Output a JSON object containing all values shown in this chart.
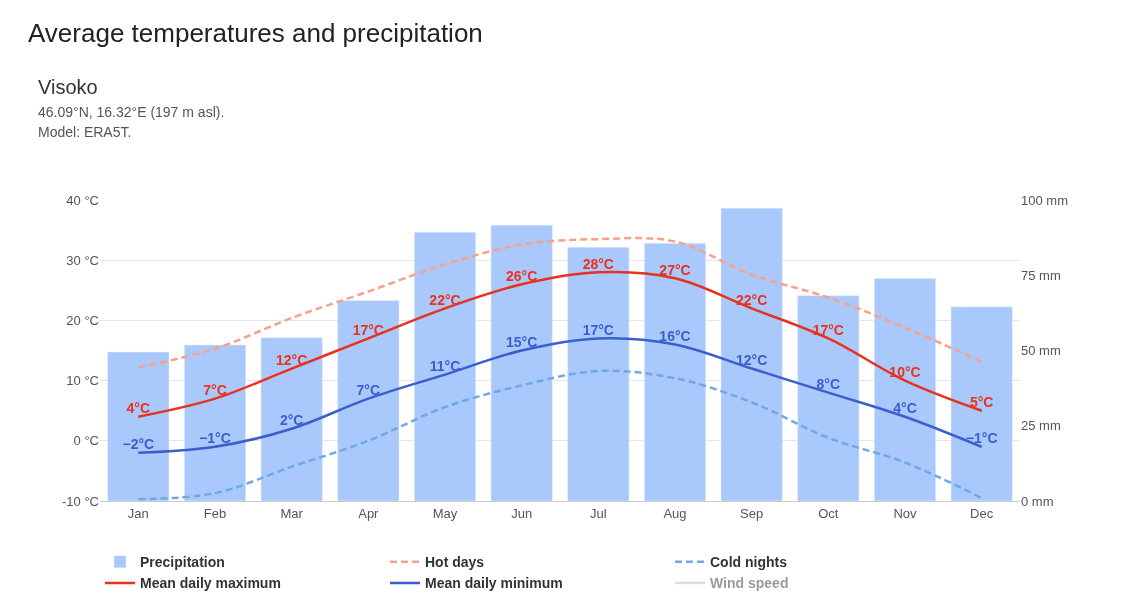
{
  "chart_data": {
    "type": "line",
    "title": "Average temperatures and precipitation",
    "subtitle": "Visoko",
    "annotations": [
      "46.09°N, 16.32°E (197 m asl).",
      "Model: ERA5T."
    ],
    "categories": [
      "Jan",
      "Feb",
      "Mar",
      "Apr",
      "May",
      "Jun",
      "Jul",
      "Aug",
      "Sep",
      "Oct",
      "Nov",
      "Dec"
    ],
    "series": [
      {
        "name": "Precipitation",
        "type": "bar",
        "axis": "y2",
        "color": "#a9c8fb",
        "values": [
          49.5,
          51.8,
          54.2,
          66.6,
          89.3,
          91.6,
          84.3,
          85.6,
          97.3,
          68.2,
          73.9,
          64.5
        ]
      },
      {
        "name": "Hot days",
        "color": "#f8a08c",
        "line_style": "dashed",
        "values": [
          12.2,
          15.3,
          20.4,
          24.8,
          29.3,
          32.6,
          33.5,
          33.1,
          27.6,
          23.8,
          18.8,
          13.1
        ]
      },
      {
        "name": "Cold nights",
        "color": "#6fa8e6",
        "line_style": "dashed",
        "values": [
          -9.7,
          -8.7,
          -4.3,
          0.0,
          5.6,
          9.2,
          11.6,
          10.4,
          6.4,
          0.5,
          -3.6,
          -9.5
        ]
      },
      {
        "name": "Mean daily maximum",
        "color": "#e8321e",
        "line_style": "solid",
        "values": [
          4,
          7,
          12,
          17,
          22,
          26,
          28,
          27,
          22,
          17,
          10,
          5
        ],
        "value_labels": [
          "4°C",
          "7°C",
          "12°C",
          "17°C",
          "22°C",
          "26°C",
          "28°C",
          "27°C",
          "22°C",
          "17°C",
          "10°C",
          "5°C"
        ]
      },
      {
        "name": "Mean daily minimum",
        "color": "#3a5fcd",
        "line_style": "solid",
        "values": [
          -2,
          -1,
          2,
          7,
          11,
          15,
          17,
          16,
          12,
          8,
          4,
          -1
        ],
        "value_labels": [
          "−2°C",
          "−1°C",
          "2°C",
          "7°C",
          "11°C",
          "15°C",
          "17°C",
          "16°C",
          "12°C",
          "8°C",
          "4°C",
          "−1°C"
        ]
      },
      {
        "name": "Wind speed",
        "color": "#bbbbbb",
        "line_style": "solid",
        "values": [
          null,
          null,
          null,
          null,
          null,
          null,
          null,
          null,
          null,
          null,
          null,
          null
        ]
      }
    ],
    "ylim": [
      -10,
      40
    ],
    "yticks": [
      {
        "value": -10,
        "label": "-10 °C"
      },
      {
        "value": 0,
        "label": "0 °C"
      },
      {
        "value": 10,
        "label": "10 °C"
      },
      {
        "value": 20,
        "label": "20 °C"
      },
      {
        "value": 30,
        "label": "30 °C"
      },
      {
        "value": 40,
        "label": "40 °C"
      }
    ],
    "y2lim": [
      0,
      100
    ],
    "y2ticks": [
      {
        "value": 0,
        "label": "0 mm"
      },
      {
        "value": 25,
        "label": "25 mm"
      },
      {
        "value": 50,
        "label": "50 mm"
      },
      {
        "value": 75,
        "label": "75 mm"
      },
      {
        "value": 100,
        "label": "100 mm"
      }
    ],
    "grid": "y",
    "legend": "bottom",
    "marker": "none"
  }
}
